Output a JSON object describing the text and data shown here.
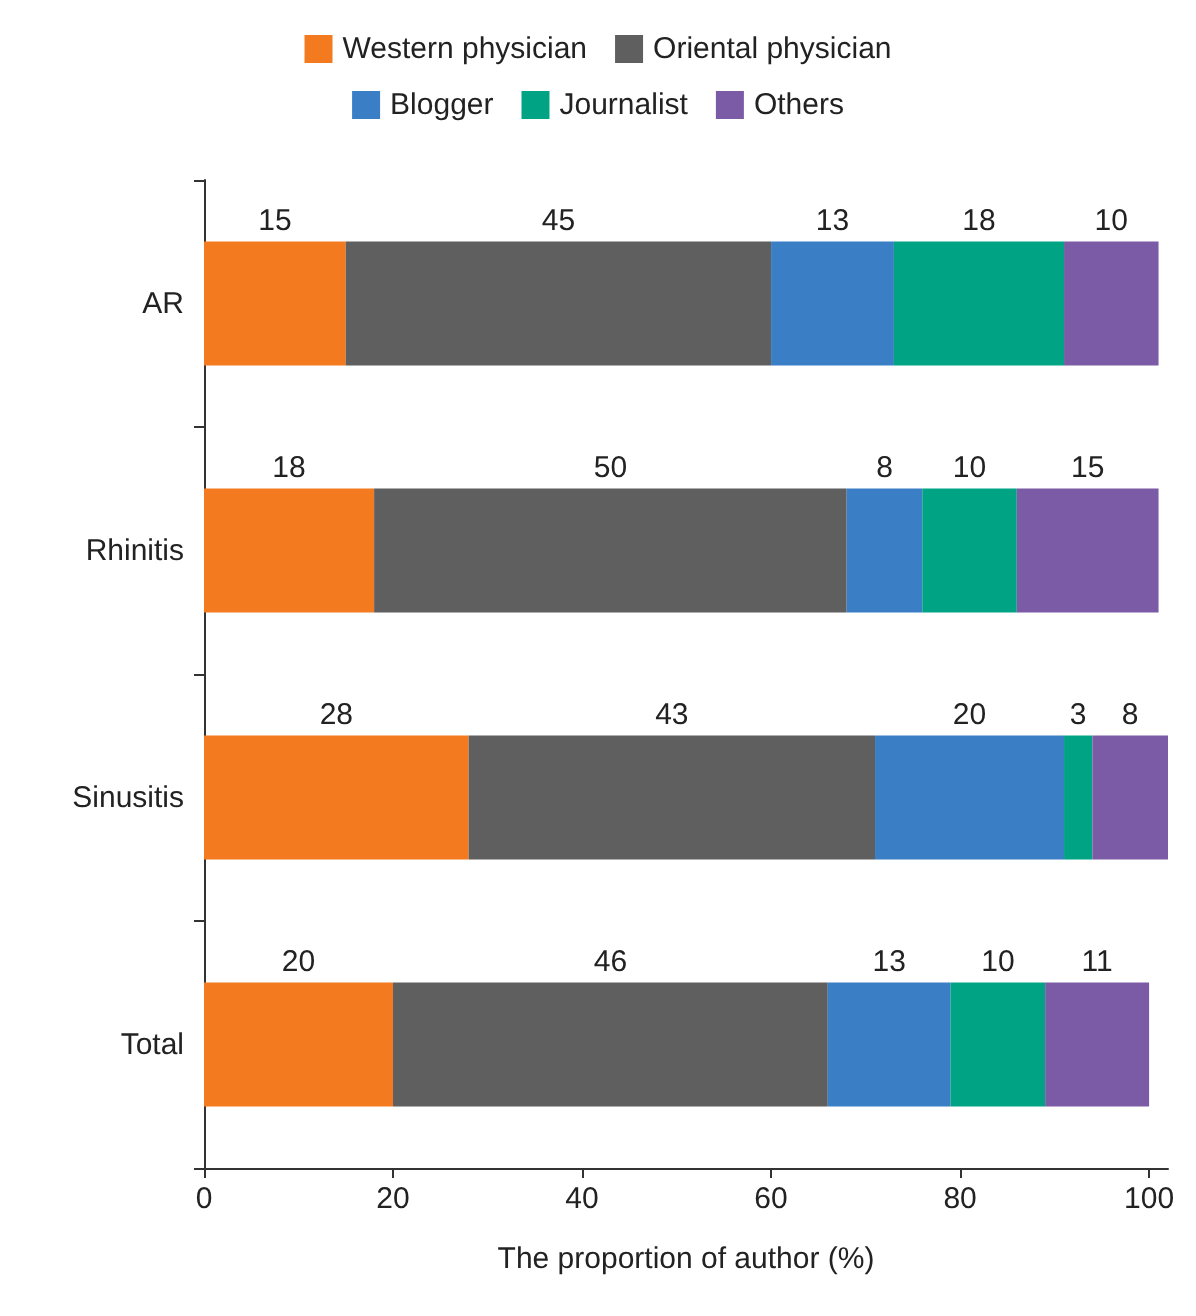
{
  "chart_data": {
    "type": "bar",
    "orientation": "horizontal",
    "stacked": true,
    "data_labels": true,
    "xlabel": "The proportion of author (%)",
    "categories": [
      "AR",
      "Rhinitis",
      "Sinusitis",
      "Total"
    ],
    "series": [
      {
        "name": "Western physician",
        "color": "#f47a20",
        "values": [
          15,
          18,
          28,
          20
        ]
      },
      {
        "name": "Oriental physician",
        "color": "#5f5f5f",
        "values": [
          45,
          50,
          43,
          46
        ]
      },
      {
        "name": "Blogger",
        "color": "#3a7fc5",
        "values": [
          13,
          8,
          20,
          13
        ]
      },
      {
        "name": "Journalist",
        "color": "#00a383",
        "values": [
          18,
          10,
          3,
          10
        ]
      },
      {
        "name": "Others",
        "color": "#7b5aa6",
        "values": [
          10,
          15,
          8,
          11
        ]
      }
    ],
    "xlim": [
      0,
      102
    ],
    "xticks": [
      0,
      20,
      40,
      60,
      80,
      100
    ],
    "legend": "top",
    "grid": false
  }
}
